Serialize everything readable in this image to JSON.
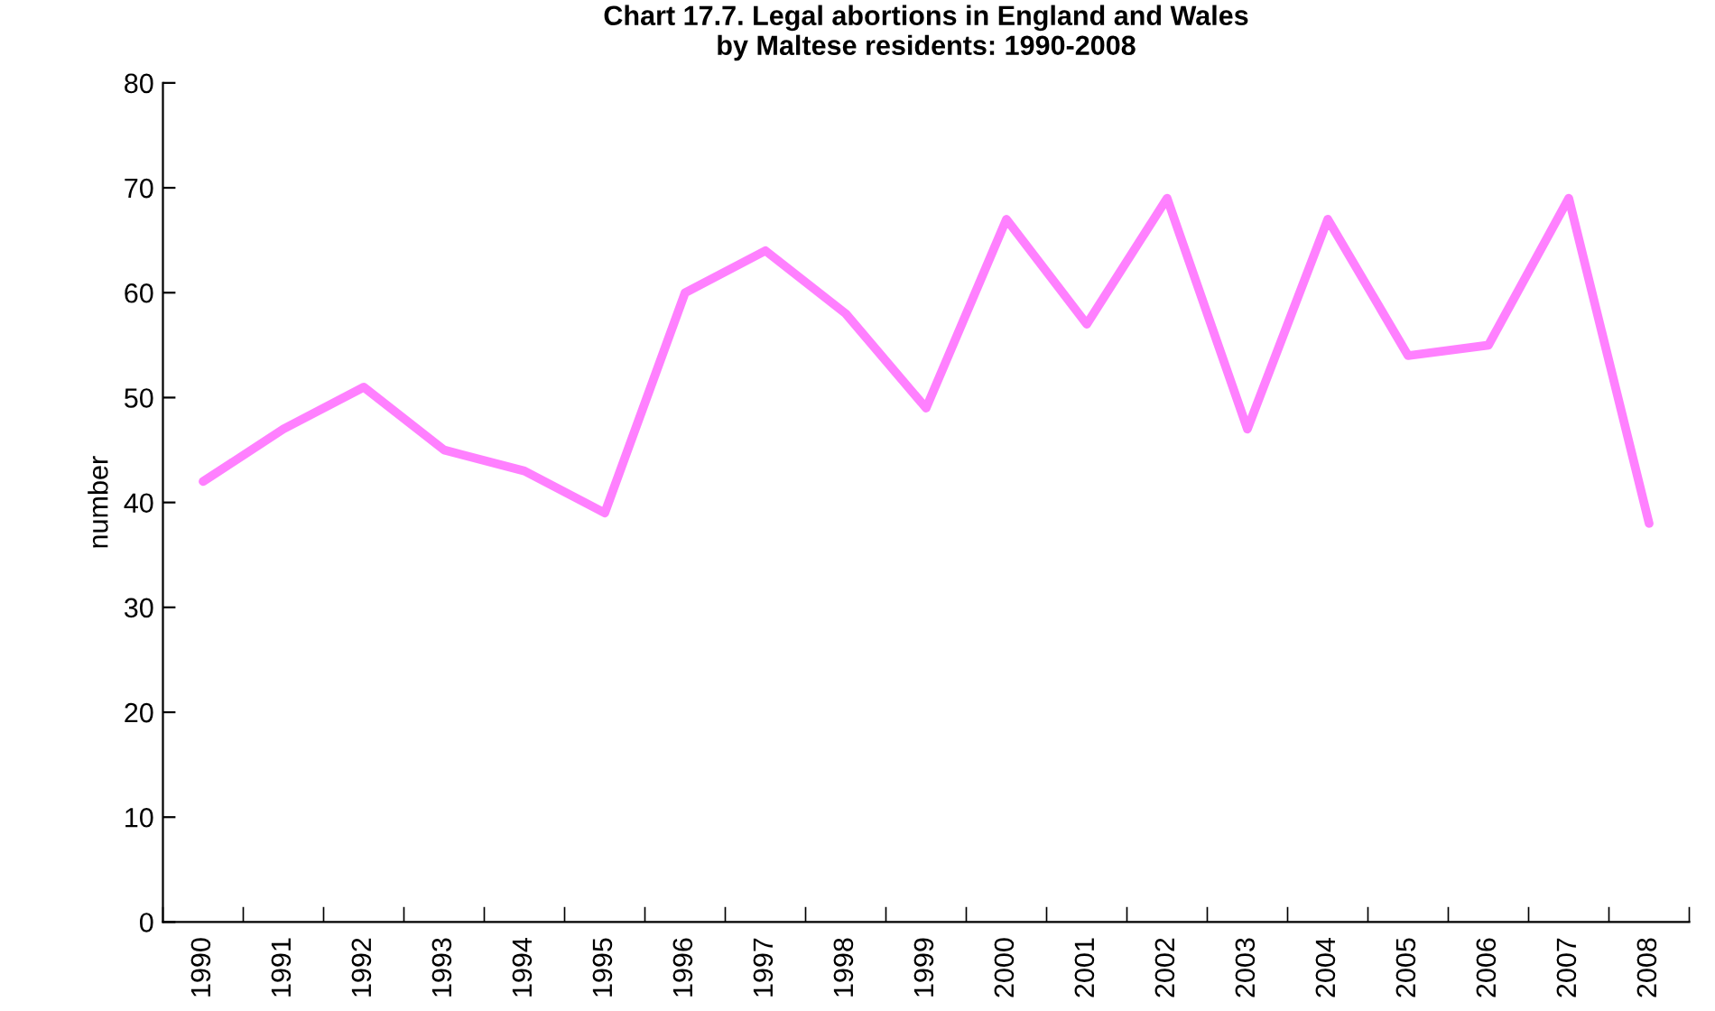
{
  "chart_data": {
    "type": "line",
    "title": "Chart 17.7. Legal abortions in England and Wales\nby Maltese residents: 1990-2008",
    "ylabel": "number",
    "categories": [
      "1990",
      "1991",
      "1992",
      "1993",
      "1994",
      "1995",
      "1996",
      "1997",
      "1998",
      "1999",
      "2000",
      "2001",
      "2002",
      "2003",
      "2004",
      "2005",
      "2006",
      "2007",
      "2008"
    ],
    "series": [
      {
        "color": "#ff80ff",
        "values": [
          42,
          47,
          51,
          45,
          43,
          39,
          60,
          64,
          58,
          49,
          67,
          57,
          69,
          47,
          67,
          54,
          55,
          69,
          38
        ]
      }
    ],
    "ylim": [
      0,
      80
    ],
    "yticks": [
      0,
      10,
      20,
      30,
      40,
      50,
      60,
      70,
      80
    ],
    "grid": false,
    "legend": false,
    "marker": "none",
    "line_style": "solid"
  }
}
